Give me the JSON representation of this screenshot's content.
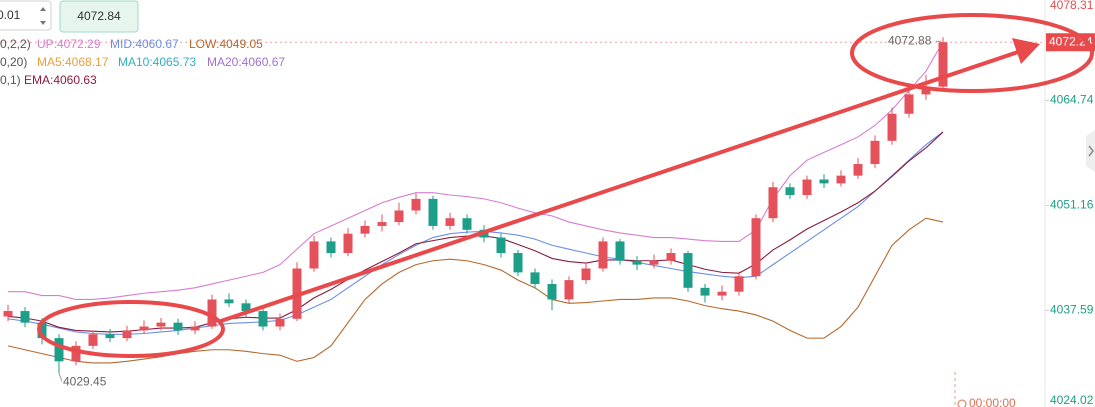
{
  "toolbar": {
    "step_input": 0.01,
    "price_box": 4072.84
  },
  "legend": [
    [
      {
        "text": "0,2,2)",
        "color": "#555555"
      },
      {
        "text": "UP:4072.29",
        "color": "#d77dd0"
      },
      {
        "text": "MID:4060.67",
        "color": "#6b8ee8"
      },
      {
        "text": "LOW:4049.05",
        "color": "#b5692e"
      }
    ],
    [
      {
        "text": "0,20)",
        "color": "#555555"
      },
      {
        "text": "MA5:4068.17",
        "color": "#e8a040"
      },
      {
        "text": "MA10:4065.73",
        "color": "#30b0c0"
      },
      {
        "text": "MA20:4060.67",
        "color": "#a070d0"
      }
    ],
    [
      {
        "text": "0,1)",
        "color": "#555555"
      },
      {
        "text": "EMA:4060.63",
        "color": "#8b1c3c"
      }
    ]
  ],
  "clock_label": "00:00:00",
  "chart_data": {
    "type": "candlestick",
    "up_color": "#e5515b",
    "down_color": "#1c9e88",
    "ylim": [
      4025.1,
      4077.7
    ],
    "yticks": [
      4078.31,
      4064.74,
      4051.16,
      4037.59,
      4024.02
    ],
    "last_price": 4072.24,
    "high_label": 4072.88,
    "low_label": 4029.45,
    "open": [
      4036.8,
      4037.5,
      4036.0,
      4034.0,
      4031.0,
      4033.0,
      4034.5,
      4034.0,
      4035.0,
      4035.5,
      4036.0,
      4035.0,
      4035.5,
      4039.0,
      4038.5,
      4037.5,
      4035.5,
      4036.5,
      4043.0,
      4046.5,
      4045.0,
      4047.5,
      4048.5,
      4049.0,
      4050.5,
      4052.0,
      4048.5,
      4049.5,
      4048.0,
      4047.0,
      4045.0,
      4042.5,
      4041.0,
      4039.0,
      4041.5,
      4043.0,
      4046.5,
      4044.0,
      4043.5,
      4044.0,
      4045.0,
      4040.5,
      4039.5,
      4040.0,
      4042.0,
      4049.5,
      4053.5,
      4052.5,
      4054.5,
      4054.0,
      4055.0,
      4056.5,
      4059.5,
      4063.0,
      4065.5,
      4066.5
    ],
    "close": [
      4037.5,
      4036.0,
      4034.0,
      4031.0,
      4033.0,
      4034.5,
      4034.0,
      4035.0,
      4035.5,
      4036.0,
      4035.0,
      4035.5,
      4039.0,
      4038.5,
      4037.5,
      4035.5,
      4036.5,
      4043.0,
      4046.5,
      4045.0,
      4047.5,
      4048.5,
      4049.0,
      4050.5,
      4052.0,
      4048.5,
      4049.5,
      4048.0,
      4047.0,
      4045.0,
      4042.5,
      4041.0,
      4039.0,
      4041.5,
      4043.0,
      4046.5,
      4044.0,
      4043.5,
      4044.0,
      4045.0,
      4040.5,
      4039.5,
      4040.0,
      4042.0,
      4049.5,
      4053.5,
      4052.5,
      4054.5,
      4054.0,
      4055.0,
      4056.5,
      4059.5,
      4063.0,
      4065.5,
      4066.5,
      4072.24
    ],
    "high": [
      4038.3,
      4038.0,
      4036.6,
      4034.5,
      4033.6,
      4035.0,
      4035.2,
      4035.6,
      4036.3,
      4036.6,
      4036.5,
      4036.2,
      4039.6,
      4039.8,
      4039.0,
      4038.0,
      4037.2,
      4043.8,
      4047.2,
      4047.0,
      4048.2,
      4049.2,
      4050.0,
      4051.5,
      4052.7,
      4052.4,
      4050.2,
      4050.0,
      4048.6,
      4047.5,
      4045.4,
      4043.0,
      4041.6,
      4042.0,
      4043.6,
      4047.0,
      4046.8,
      4044.6,
      4044.8,
      4045.6,
      4045.3,
      4041.0,
      4040.8,
      4042.6,
      4050.0,
      4054.2,
      4054.0,
      4055.0,
      4055.2,
      4055.7,
      4057.3,
      4060.2,
      4063.8,
      4066.6,
      4068.0,
      4072.88
    ],
    "low": [
      4036.2,
      4035.4,
      4033.2,
      4029.45,
      4030.5,
      4032.6,
      4033.5,
      4033.6,
      4034.6,
      4035.0,
      4034.4,
      4034.5,
      4035.2,
      4038.0,
      4036.8,
      4035.0,
      4035.0,
      4036.2,
      4042.6,
      4044.4,
      4044.6,
      4047.0,
      4047.8,
      4048.6,
      4050.0,
      4048.0,
      4048.0,
      4047.5,
      4046.4,
      4044.4,
      4042.0,
      4040.4,
      4037.6,
      4038.5,
      4041.0,
      4042.6,
      4043.5,
      4042.8,
      4043.0,
      4043.5,
      4040.0,
      4038.6,
      4038.9,
      4039.5,
      4041.6,
      4049.0,
      4052.0,
      4052.0,
      4053.4,
      4053.6,
      4054.6,
      4056.0,
      4059.0,
      4062.5,
      4064.8,
      4066.0
    ],
    "overlays": [
      {
        "color": "#d77dd0",
        "values": [
          4040.0,
          4040.0,
          4039.5,
          4039.5,
          4039.0,
          4039.0,
          4039.2,
          4039.5,
          4039.8,
          4040.0,
          4040.2,
          4040.5,
          4041.0,
          4041.5,
          4042.0,
          4042.5,
          4043.5,
          4045.5,
          4047.5,
          4048.5,
          4049.5,
          4050.5,
          4051.5,
          4052.2,
          4052.8,
          4052.8,
          4052.5,
          4052.3,
          4052.0,
          4051.5,
          4050.8,
          4050.2,
          4049.8,
          4049.0,
          4048.5,
          4048.0,
          4047.6,
          4047.3,
          4047.0,
          4047.0,
          4046.8,
          4046.6,
          4046.5,
          4046.5,
          4048.0,
          4052.0,
          4055.0,
          4057.0,
          4058.0,
          4059.0,
          4060.0,
          4061.5,
          4063.5,
          4066.0,
          4068.5,
          4072.3
        ]
      },
      {
        "color": "#b5692e",
        "values": [
          4033.0,
          4032.5,
          4032.0,
          4031.5,
          4031.0,
          4030.8,
          4030.8,
          4031.0,
          4031.3,
          4031.6,
          4032.0,
          4032.3,
          4032.5,
          4032.5,
          4032.3,
          4032.0,
          4031.8,
          4031.0,
          4031.5,
          4033.0,
          4036.0,
          4039.0,
          4041.0,
          4042.5,
          4043.5,
          4044.0,
          4044.2,
          4044.0,
          4043.5,
          4042.8,
          4041.5,
          4040.5,
          4039.0,
          4038.5,
          4038.6,
          4038.8,
          4039.0,
          4039.0,
          4039.2,
          4039.2,
          4038.8,
          4038.2,
          4037.8,
          4037.5,
          4037.0,
          4036.2,
          4035.0,
          4034.0,
          4034.0,
          4035.5,
          4038.0,
          4042.0,
          4046.0,
          4048.0,
          4049.5,
          4049.0
        ]
      },
      {
        "color": "#6b8ee8",
        "values": [
          4036.5,
          4036.2,
          4035.8,
          4035.3,
          4034.8,
          4034.6,
          4034.5,
          4034.5,
          4034.6,
          4034.8,
          4035.0,
          4035.3,
          4035.6,
          4035.9,
          4036.0,
          4036.1,
          4036.3,
          4037.0,
          4038.0,
          4039.0,
          4040.5,
          4042.0,
          4043.5,
          4044.8,
          4046.0,
          4047.0,
          4047.5,
          4047.7,
          4047.8,
          4047.6,
          4047.3,
          4046.8,
          4046.0,
          4045.5,
          4045.0,
          4044.5,
          4044.2,
          4043.8,
          4043.4,
          4043.0,
          4042.6,
          4042.3,
          4042.0,
          4041.8,
          4042.0,
          4043.5,
          4045.0,
          4046.5,
          4048.0,
          4049.5,
          4051.0,
          4053.0,
          4055.0,
          4057.0,
          4059.0,
          4060.67
        ]
      },
      {
        "color": "#8b1c3c",
        "values": [
          4036.8,
          4036.6,
          4036.2,
          4035.4,
          4035.0,
          4034.9,
          4034.8,
          4034.9,
          4035.1,
          4035.3,
          4035.3,
          4035.4,
          4036.0,
          4036.5,
          4036.7,
          4036.6,
          4036.6,
          4037.7,
          4039.2,
          4040.3,
          4041.6,
          4042.8,
          4043.9,
          4045.0,
          4046.2,
          4046.6,
          4047.0,
          4047.2,
          4047.2,
          4046.9,
          4046.1,
          4045.3,
          4044.3,
          4043.9,
          4043.7,
          4044.1,
          4044.1,
          4044.0,
          4044.0,
          4044.1,
          4043.5,
          4042.9,
          4042.5,
          4042.4,
          4043.6,
          4045.4,
          4046.7,
          4048.1,
          4049.2,
          4050.3,
          4051.5,
          4053.0,
          4054.9,
          4056.9,
          4058.6,
          4060.63
        ]
      }
    ]
  }
}
